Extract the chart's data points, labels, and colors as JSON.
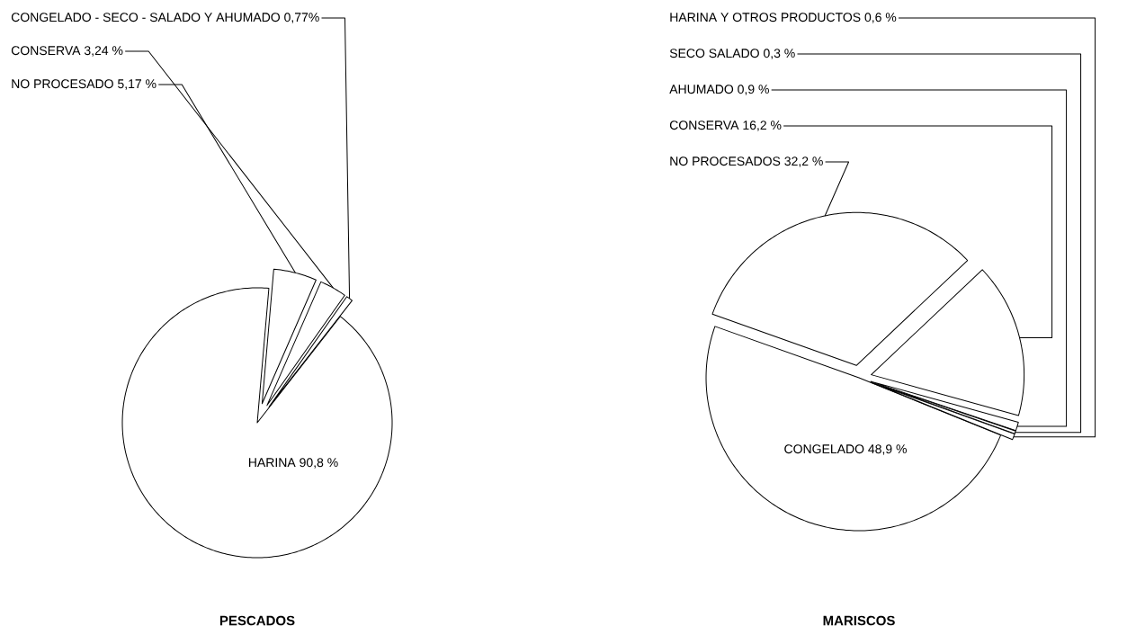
{
  "chart_data": [
    {
      "type": "pie",
      "title": "PESCADOS",
      "categories": [
        "HARINA",
        "NO PROCESADO",
        "CONSERVA",
        "CONGELADO - SECO - SALADO Y AHUMADO"
      ],
      "values": [
        90.8,
        5.17,
        3.24,
        0.77
      ],
      "value_labels": [
        "90,8 %",
        "5,17 %",
        "3,24 %",
        "0,77%"
      ],
      "colors": [
        "#ffffff",
        "#ffffff",
        "#ffffff",
        "#ffffff"
      ]
    },
    {
      "type": "pie",
      "title": "MARISCOS",
      "categories": [
        "CONGELADO",
        "NO PROCESADOS",
        "CONSERVA",
        "AHUMADO",
        "SECO SALADO",
        "HARINA Y OTROS PRODUCTOS"
      ],
      "values": [
        48.9,
        32.2,
        16.2,
        0.9,
        0.3,
        0.6
      ],
      "value_labels": [
        "48,9 %",
        "32,2 %",
        "16,2 %",
        "0,9 %",
        "0,3 %",
        "0,6 %"
      ],
      "colors": [
        "#ffffff",
        "#ffffff",
        "#ffffff",
        "#ffffff",
        "#ffffff",
        "#ffffff"
      ]
    }
  ]
}
